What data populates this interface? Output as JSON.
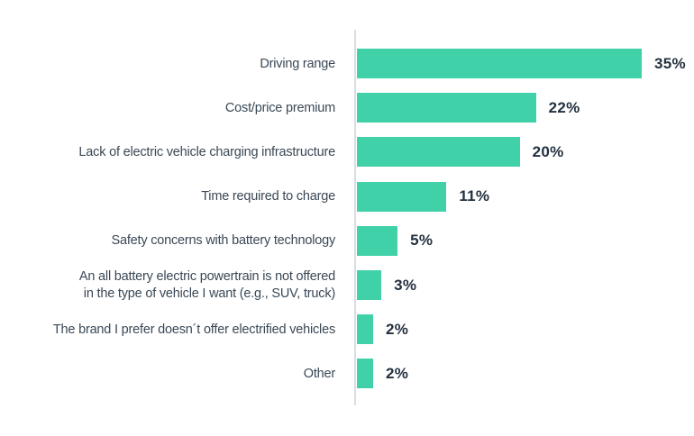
{
  "chart_data": {
    "type": "bar",
    "orientation": "horizontal",
    "title": "",
    "xlabel": "",
    "ylabel": "",
    "xlim": [
      0,
      35
    ],
    "grid": false,
    "legend": false,
    "categories": [
      "Driving range",
      "Cost/price premium",
      "Lack of electric vehicle charging infrastructure",
      "Time required to charge",
      "Safety concerns with battery technology",
      "An all battery electric powertrain is not offered\nin the type of vehicle I want (e.g., SUV, truck)",
      "The brand I prefer doesn´t offer electrified vehicles",
      "Other"
    ],
    "values": [
      35,
      22,
      20,
      11,
      5,
      3,
      2,
      2
    ],
    "value_labels": [
      "35%",
      "22%",
      "20%",
      "11%",
      "5%",
      "3%",
      "2%",
      "2%"
    ],
    "bar_color": "#40d1a8",
    "axis_line_color": "#d9dee4",
    "label_color": "#3a4856",
    "value_color": "#23313f",
    "background_color": "#ffffff"
  }
}
